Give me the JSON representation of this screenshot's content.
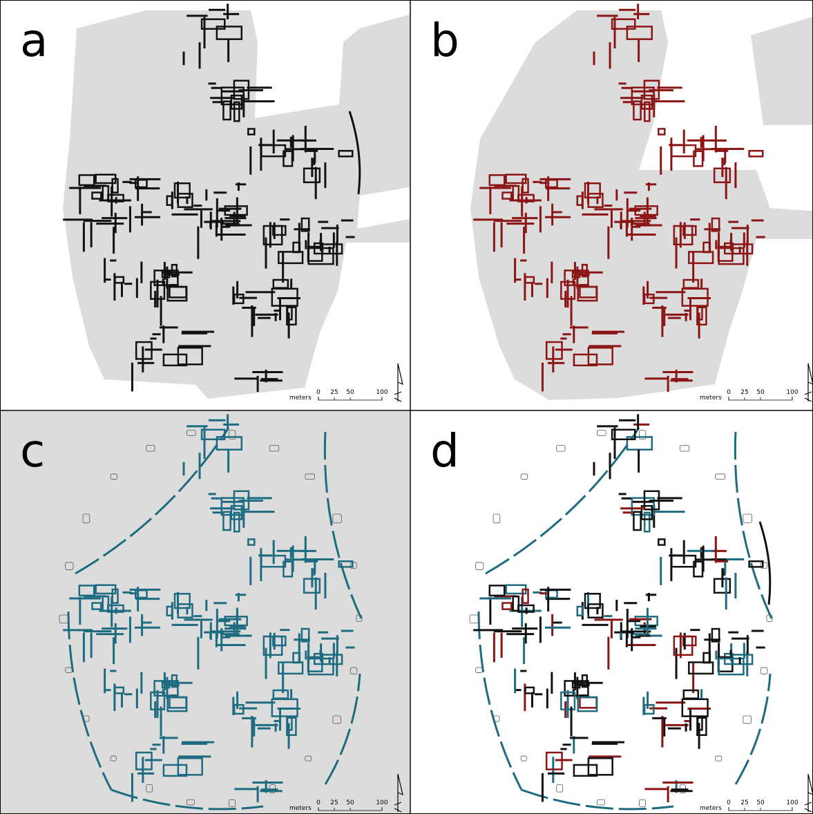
{
  "panels": [
    {
      "label": "a",
      "scale": {
        "unit": "meters",
        "ticks": [
          "0",
          "25",
          "50",
          "100"
        ]
      }
    },
    {
      "label": "b",
      "scale": {
        "unit": "meters",
        "ticks": [
          "0",
          "25",
          "50",
          "100"
        ]
      }
    },
    {
      "label": "c",
      "scale": {
        "unit": "meters",
        "ticks": [
          "0",
          "25",
          "50",
          "100"
        ]
      }
    },
    {
      "label": "d",
      "scale": {
        "unit": "meters",
        "ticks": [
          "0",
          "25",
          "50",
          "100"
        ]
      }
    }
  ]
}
